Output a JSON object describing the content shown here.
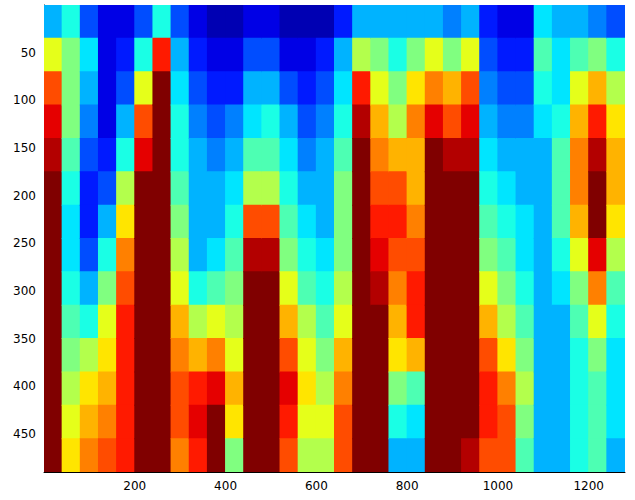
{
  "chart_data": {
    "type": "heatmap",
    "x": [
      20,
      60,
      100,
      140,
      180,
      220,
      260,
      300,
      340,
      380,
      420,
      460,
      500,
      540,
      580,
      620,
      660,
      700,
      740,
      780,
      820,
      860,
      900,
      940,
      980,
      1020,
      1060,
      1100,
      1140,
      1180,
      1220,
      1260
    ],
    "y": [
      17.5,
      52.5,
      87.5,
      122.5,
      157.5,
      192.5,
      227.5,
      262.5,
      297.5,
      332.5,
      367.5,
      402.5,
      437.5,
      472.5
    ],
    "values": [
      [
        0.3,
        0.6,
        0.8,
        0.9,
        0.95,
        1,
        1,
        1,
        1,
        1,
        1,
        1,
        1,
        1
      ],
      [
        0.4,
        0.5,
        0.5,
        0.5,
        0.45,
        0.4,
        0.35,
        0.35,
        0.4,
        0.45,
        0.5,
        0.55,
        0.6,
        0.65
      ],
      [
        0.2,
        0.35,
        0.3,
        0.25,
        0.2,
        0.15,
        0.15,
        0.2,
        0.3,
        0.4,
        0.55,
        0.65,
        0.7,
        0.75
      ],
      [
        0.1,
        0.1,
        0.1,
        0.1,
        0.15,
        0.2,
        0.3,
        0.4,
        0.5,
        0.6,
        0.65,
        0.7,
        0.75,
        0.8
      ],
      [
        0.1,
        0.15,
        0.2,
        0.3,
        0.4,
        0.55,
        0.65,
        0.75,
        0.8,
        0.85,
        0.85,
        0.85,
        0.85,
        0.85
      ],
      [
        0.2,
        0.4,
        0.6,
        0.8,
        0.9,
        1,
        1,
        1,
        1,
        1,
        1,
        1,
        1,
        1
      ],
      [
        0.4,
        0.85,
        1,
        1,
        1,
        1,
        1,
        1,
        1,
        1,
        1,
        1,
        1,
        1
      ],
      [
        0.2,
        0.3,
        0.35,
        0.4,
        0.4,
        0.45,
        0.5,
        0.55,
        0.6,
        0.7,
        0.75,
        0.8,
        0.8,
        0.75
      ],
      [
        0.1,
        0.15,
        0.2,
        0.25,
        0.3,
        0.3,
        0.3,
        0.3,
        0.4,
        0.55,
        0.7,
        0.85,
        0.9,
        0.85
      ],
      [
        0.05,
        0.1,
        0.15,
        0.2,
        0.25,
        0.3,
        0.3,
        0.35,
        0.45,
        0.6,
        0.75,
        0.9,
        1,
        1
      ],
      [
        0.05,
        0.1,
        0.15,
        0.25,
        0.3,
        0.35,
        0.4,
        0.45,
        0.5,
        0.55,
        0.6,
        0.7,
        0.65,
        0.5
      ],
      [
        0.1,
        0.2,
        0.3,
        0.35,
        0.45,
        0.55,
        0.8,
        0.95,
        1,
        1,
        1,
        1,
        1,
        1
      ],
      [
        0.1,
        0.2,
        0.3,
        0.4,
        0.45,
        0.55,
        0.8,
        0.95,
        1,
        1,
        1,
        1,
        1,
        1
      ],
      [
        0.05,
        0.1,
        0.2,
        0.3,
        0.35,
        0.4,
        0.45,
        0.5,
        0.6,
        0.7,
        0.8,
        0.9,
        0.85,
        0.8
      ],
      [
        0.05,
        0.1,
        0.15,
        0.2,
        0.25,
        0.3,
        0.35,
        0.4,
        0.45,
        0.55,
        0.6,
        0.65,
        0.6,
        0.55
      ],
      [
        0.05,
        0.15,
        0.2,
        0.25,
        0.3,
        0.3,
        0.3,
        0.35,
        0.4,
        0.45,
        0.5,
        0.55,
        0.6,
        0.55
      ],
      [
        0.15,
        0.3,
        0.35,
        0.4,
        0.45,
        0.5,
        0.5,
        0.5,
        0.55,
        0.6,
        0.7,
        0.75,
        0.8,
        0.8
      ],
      [
        0.3,
        0.55,
        0.85,
        0.95,
        1,
        1,
        1,
        1,
        1,
        1,
        1,
        1,
        1,
        1
      ],
      [
        0.3,
        0.5,
        0.6,
        0.7,
        0.75,
        0.8,
        0.85,
        0.9,
        0.95,
        1,
        1,
        1,
        1,
        1
      ],
      [
        0.3,
        0.4,
        0.5,
        0.55,
        0.7,
        0.8,
        0.85,
        0.8,
        0.75,
        0.7,
        0.65,
        0.5,
        0.4,
        0.3
      ],
      [
        0.3,
        0.5,
        0.65,
        0.75,
        0.7,
        0.7,
        0.75,
        0.8,
        0.85,
        0.85,
        0.7,
        0.45,
        0.35,
        0.3
      ],
      [
        0.3,
        0.6,
        0.75,
        0.9,
        1,
        1,
        1,
        1,
        1,
        1,
        1,
        1,
        1,
        1
      ],
      [
        0.25,
        0.5,
        0.7,
        0.8,
        0.95,
        1,
        1,
        1,
        1,
        1,
        1,
        1,
        1,
        1
      ],
      [
        0.3,
        0.6,
        0.8,
        0.9,
        0.95,
        1,
        1,
        1,
        1,
        1,
        1,
        1,
        1,
        0.95
      ],
      [
        0.15,
        0.2,
        0.25,
        0.3,
        0.35,
        0.4,
        0.45,
        0.5,
        0.6,
        0.7,
        0.8,
        0.85,
        0.85,
        0.8
      ],
      [
        0.1,
        0.15,
        0.2,
        0.25,
        0.3,
        0.35,
        0.4,
        0.45,
        0.5,
        0.55,
        0.65,
        0.75,
        0.8,
        0.8
      ],
      [
        0.1,
        0.15,
        0.2,
        0.25,
        0.3,
        0.3,
        0.35,
        0.35,
        0.4,
        0.45,
        0.5,
        0.55,
        0.5,
        0.45
      ],
      [
        0.35,
        0.45,
        0.4,
        0.35,
        0.3,
        0.3,
        0.3,
        0.3,
        0.3,
        0.3,
        0.3,
        0.3,
        0.3,
        0.3
      ],
      [
        0.3,
        0.35,
        0.35,
        0.4,
        0.45,
        0.45,
        0.45,
        0.4,
        0.35,
        0.3,
        0.3,
        0.3,
        0.3,
        0.3
      ],
      [
        0.3,
        0.45,
        0.6,
        0.7,
        0.75,
        0.75,
        0.7,
        0.6,
        0.5,
        0.45,
        0.4,
        0.4,
        0.4,
        0.4
      ],
      [
        0.25,
        0.5,
        0.7,
        0.85,
        0.95,
        1,
        1,
        0.9,
        0.75,
        0.6,
        0.5,
        0.45,
        0.45,
        0.45
      ],
      [
        0.2,
        0.4,
        0.55,
        0.65,
        0.7,
        0.7,
        0.65,
        0.55,
        0.45,
        0.4,
        0.35,
        0.35,
        0.35,
        0.3
      ]
    ],
    "color_range": [
      0,
      1
    ],
    "xlim": [
      0,
      1280
    ],
    "ylim": [
      0,
      490
    ],
    "xticks": [
      200,
      400,
      600,
      800,
      1000,
      1200
    ],
    "yticks": [
      50,
      100,
      150,
      200,
      250,
      300,
      350,
      400,
      450
    ],
    "grid": false
  }
}
